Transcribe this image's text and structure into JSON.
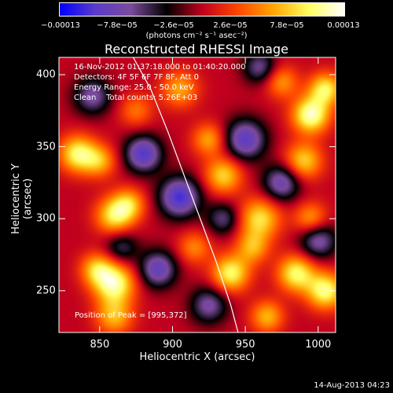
{
  "colorbar": {
    "ticks": [
      "−0.00013",
      "−7.8e−05",
      "−2.6e−05",
      "2.6e−05",
      "7.8e−05",
      "0.00013"
    ],
    "units": "(photons cm⁻² s⁻¹ asec⁻²)",
    "colors": [
      "#0000ff",
      "#5b3cc8",
      "#7a4a9c",
      "#000000",
      "#c0001e",
      "#ff4500",
      "#ffa500",
      "#ffff60",
      "#ffffff"
    ]
  },
  "info": {
    "line1": "16-Nov-2012 01:37:18.000 to 01:40:20.000",
    "line2": "Detectors: 4F 5F 6F 7F 8F, Att 0",
    "line3": "Energy Range: 25.0 - 50.0 keV",
    "line4": "Clean    Total counts: 5.26E+03",
    "peak": "Position of Peak = [995,372]"
  },
  "footer": "14-Aug-2013 04:23",
  "chart_data": {
    "type": "heatmap",
    "title": "Reconstructed RHESSI Image",
    "xlabel": "Heliocentric X (arcsec)",
    "ylabel": "Heliocentric Y (arcsec)",
    "xlim": [
      822,
      1012
    ],
    "ylim": [
      221,
      412
    ],
    "x_ticks": [
      850,
      900,
      950,
      1000
    ],
    "y_ticks": [
      250,
      300,
      350,
      400
    ],
    "x_tick_labels": [
      "850",
      "900",
      "950",
      "1000"
    ],
    "y_tick_labels": [
      "250",
      "300",
      "350",
      "400"
    ],
    "value_range": [
      -0.00013,
      0.00013
    ],
    "peak_position": [
      995,
      372
    ],
    "limb_curve": [
      [
        873,
        412
      ],
      [
        885,
        390
      ],
      [
        897,
        360
      ],
      [
        908,
        330
      ],
      [
        919,
        300
      ],
      [
        930,
        270
      ],
      [
        940,
        240
      ],
      [
        945,
        221
      ]
    ],
    "sources": [
      {
        "x": 995,
        "y": 372,
        "amp": 1.0,
        "sigma": 9
      },
      {
        "x": 1005,
        "y": 390,
        "amp": 0.8,
        "sigma": 8
      },
      {
        "x": 990,
        "y": 340,
        "amp": 0.7,
        "sigma": 9
      },
      {
        "x": 835,
        "y": 345,
        "amp": 0.85,
        "sigma": 9
      },
      {
        "x": 850,
        "y": 340,
        "amp": 0.55,
        "sigma": 8
      },
      {
        "x": 860,
        "y": 302,
        "amp": 0.75,
        "sigma": 9
      },
      {
        "x": 870,
        "y": 310,
        "amp": 0.6,
        "sigma": 8
      },
      {
        "x": 860,
        "y": 255,
        "amp": 0.95,
        "sigma": 10
      },
      {
        "x": 848,
        "y": 265,
        "amp": 0.6,
        "sigma": 8
      },
      {
        "x": 905,
        "y": 390,
        "amp": 0.55,
        "sigma": 9
      },
      {
        "x": 925,
        "y": 355,
        "amp": 0.55,
        "sigma": 8
      },
      {
        "x": 935,
        "y": 330,
        "amp": 0.7,
        "sigma": 9
      },
      {
        "x": 960,
        "y": 300,
        "amp": 0.75,
        "sigma": 10
      },
      {
        "x": 940,
        "y": 262,
        "amp": 0.85,
        "sigma": 9
      },
      {
        "x": 955,
        "y": 280,
        "amp": 0.55,
        "sigma": 8
      },
      {
        "x": 985,
        "y": 262,
        "amp": 0.85,
        "sigma": 9
      },
      {
        "x": 1005,
        "y": 250,
        "amp": 0.9,
        "sigma": 9
      },
      {
        "x": 995,
        "y": 300,
        "amp": 0.55,
        "sigma": 8
      },
      {
        "x": 965,
        "y": 232,
        "amp": 0.6,
        "sigma": 8
      },
      {
        "x": 860,
        "y": 232,
        "amp": 0.6,
        "sigma": 9
      },
      {
        "x": 975,
        "y": 395,
        "amp": 0.5,
        "sigma": 8
      },
      {
        "x": 875,
        "y": 375,
        "amp": 0.4,
        "sigma": 8
      },
      {
        "x": 915,
        "y": 280,
        "amp": 0.45,
        "sigma": 8
      },
      {
        "x": 880,
        "y": 345,
        "amp": -0.85,
        "sigma": 9
      },
      {
        "x": 905,
        "y": 315,
        "amp": -0.9,
        "sigma": 10
      },
      {
        "x": 890,
        "y": 265,
        "amp": -0.75,
        "sigma": 9
      },
      {
        "x": 950,
        "y": 355,
        "amp": -0.8,
        "sigma": 10
      },
      {
        "x": 975,
        "y": 325,
        "amp": -0.7,
        "sigma": 9
      },
      {
        "x": 925,
        "y": 240,
        "amp": -0.6,
        "sigma": 9
      },
      {
        "x": 845,
        "y": 385,
        "amp": -0.6,
        "sigma": 9
      },
      {
        "x": 960,
        "y": 405,
        "amp": -0.55,
        "sigma": 8
      },
      {
        "x": 1000,
        "y": 285,
        "amp": -0.65,
        "sigma": 9
      },
      {
        "x": 935,
        "y": 300,
        "amp": -0.5,
        "sigma": 8
      },
      {
        "x": 865,
        "y": 280,
        "amp": -0.45,
        "sigma": 8
      }
    ]
  }
}
